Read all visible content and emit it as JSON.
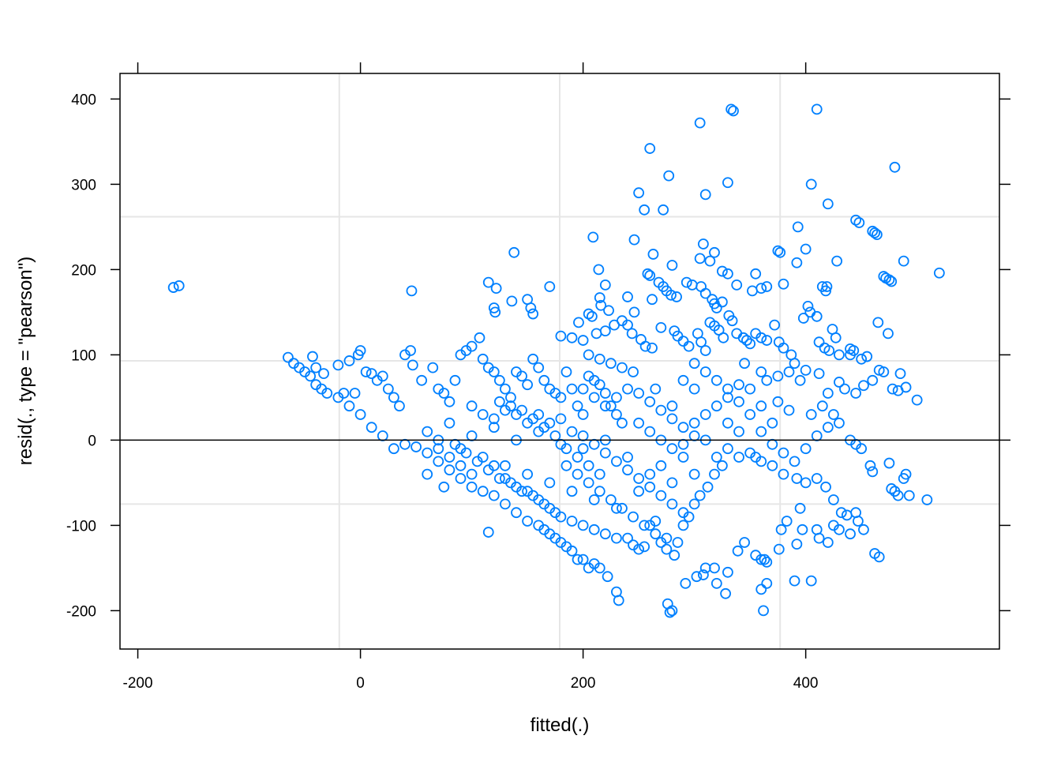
{
  "chart_data": {
    "type": "scatter",
    "x_label": "fitted(.)",
    "y_label": "resid(., type = \"pearson\")",
    "xlim": [
      -216,
      574
    ],
    "ylim": [
      -245,
      430
    ],
    "xticks": [
      -200,
      0,
      200,
      400
    ],
    "yticks": [
      -200,
      -100,
      0,
      100,
      200,
      300,
      400
    ],
    "mirror_ticks": true,
    "grid_x": [
      -19,
      179,
      377
    ],
    "grid_y": [
      -75,
      93,
      262
    ],
    "hline": 0,
    "color": "#0080ff",
    "x": [
      -168,
      -163,
      46,
      115,
      122,
      138,
      120,
      121,
      150,
      153,
      155,
      136,
      170,
      209,
      214,
      220,
      260,
      250,
      255,
      272,
      277,
      305,
      310,
      330,
      333,
      335,
      410,
      480,
      405,
      420,
      445,
      448,
      460,
      462,
      464,
      393,
      375,
      377,
      308,
      314,
      318,
      246,
      263,
      520,
      488,
      428,
      470,
      472,
      475,
      477,
      415,
      418,
      419,
      380,
      360,
      365,
      352,
      330,
      355,
      338,
      258,
      260,
      268,
      272,
      275,
      279,
      284,
      293,
      298,
      306,
      310,
      316,
      318,
      320,
      325,
      240,
      262,
      280,
      305,
      400,
      392,
      325,
      215,
      216,
      223,
      208,
      205,
      196,
      190,
      180,
      200,
      212,
      220,
      228,
      235,
      240,
      246,
      244,
      252,
      256,
      262,
      270,
      282,
      285,
      290,
      295,
      303,
      306,
      310,
      314,
      318,
      322,
      326,
      331,
      334,
      338,
      344,
      347,
      350,
      355,
      360,
      365,
      372,
      376,
      380,
      387,
      390,
      398,
      402,
      404,
      410,
      412,
      417,
      421,
      424,
      427,
      430,
      440,
      443,
      450,
      455,
      465,
      474,
      485,
      478,
      483,
      490,
      500,
      470,
      460,
      440,
      445,
      466,
      452,
      430,
      435,
      420,
      412,
      400,
      395,
      385,
      375,
      365,
      360,
      350,
      345,
      340,
      405,
      410,
      412,
      420,
      425,
      430,
      440,
      447,
      452,
      462,
      466,
      475,
      477,
      480,
      483,
      488,
      490,
      493,
      509,
      458,
      460,
      445,
      437,
      432,
      425,
      418,
      410,
      400,
      392,
      380,
      370,
      360,
      355,
      350,
      340,
      330,
      325,
      318,
      312,
      305,
      300,
      295,
      290,
      285,
      282,
      280,
      276,
      278,
      292,
      302,
      310,
      308,
      318,
      320,
      328,
      330,
      339,
      345,
      355,
      360,
      363,
      365,
      360,
      362,
      365,
      390,
      376,
      378,
      383,
      395,
      397,
      392,
      260,
      265,
      270,
      275,
      240,
      245,
      250,
      255,
      230,
      232,
      222,
      215,
      210,
      205,
      200,
      195,
      190,
      185,
      180,
      175,
      170,
      165,
      160,
      150,
      140,
      130,
      115,
      120,
      110,
      100,
      90,
      80,
      70,
      60,
      50,
      40,
      30,
      20,
      10,
      0,
      -10,
      -20,
      -30,
      -35,
      -40,
      -45,
      -50,
      -55,
      -60,
      -65,
      -43,
      -33,
      -40,
      -20,
      -10,
      -2,
      0,
      -5,
      -15,
      5,
      10,
      15,
      20,
      25,
      30,
      35,
      40,
      45,
      47,
      55,
      65,
      70,
      75,
      80,
      85,
      90,
      95,
      100,
      107,
      110,
      115,
      120,
      125,
      130,
      135,
      140,
      145,
      150,
      155,
      160,
      165,
      170,
      175,
      180,
      185,
      190,
      195,
      200,
      205,
      210,
      215,
      220,
      225,
      230,
      235,
      60,
      70,
      80,
      90,
      100,
      110,
      120,
      130,
      140,
      150,
      160,
      170,
      180,
      190,
      200,
      210,
      220,
      230,
      240,
      250,
      260,
      270,
      280,
      290,
      300,
      310,
      320,
      330,
      340,
      100,
      110,
      120,
      130,
      140,
      150,
      160,
      170,
      180,
      190,
      200,
      210,
      220,
      230,
      240,
      250,
      260,
      270,
      280,
      290,
      120,
      130,
      140,
      150,
      160,
      170,
      180,
      190,
      200,
      210,
      220,
      230,
      100,
      90,
      80,
      70,
      60,
      75,
      200,
      210,
      220,
      230,
      240,
      250,
      260,
      270,
      280,
      290,
      300,
      250,
      260,
      270,
      280,
      290,
      300,
      310,
      320,
      330,
      300,
      290,
      280,
      265,
      245,
      235,
      225,
      215,
      205,
      300,
      310,
      320,
      330,
      340,
      350,
      360,
      370,
      380,
      390,
      400,
      410,
      420,
      430,
      440,
      445,
      450,
      405,
      415,
      425,
      370,
      360,
      375,
      385,
      85,
      95,
      105,
      115,
      125,
      135,
      145,
      155,
      165,
      175,
      185,
      195,
      205,
      215,
      225,
      235,
      245,
      255,
      265,
      275,
      125,
      135,
      145,
      155,
      165,
      175,
      185,
      195,
      205,
      215
    ],
    "values": [
      179,
      181,
      175,
      185,
      178,
      220,
      155,
      150,
      165,
      155,
      148,
      163,
      180,
      238,
      200,
      182,
      342,
      290,
      270,
      270,
      310,
      372,
      288,
      302,
      388,
      386,
      388,
      320,
      300,
      277,
      258,
      255,
      245,
      243,
      241,
      250,
      222,
      220,
      230,
      210,
      220,
      235,
      218,
      196,
      210,
      210,
      192,
      190,
      188,
      186,
      180,
      175,
      180,
      183,
      178,
      180,
      175,
      195,
      195,
      182,
      195,
      193,
      185,
      180,
      175,
      170,
      168,
      185,
      182,
      180,
      172,
      165,
      160,
      155,
      162,
      168,
      165,
      205,
      213,
      224,
      208,
      198,
      167,
      158,
      152,
      145,
      148,
      138,
      120,
      122,
      117,
      125,
      128,
      135,
      140,
      135,
      150,
      125,
      118,
      110,
      108,
      132,
      128,
      122,
      116,
      110,
      125,
      115,
      105,
      138,
      134,
      129,
      120,
      146,
      140,
      125,
      120,
      117,
      113,
      125,
      120,
      117,
      135,
      115,
      108,
      100,
      90,
      143,
      157,
      150,
      145,
      115,
      108,
      105,
      130,
      120,
      100,
      107,
      105,
      95,
      98,
      138,
      125,
      78,
      60,
      58,
      62,
      47,
      80,
      70,
      100,
      55,
      82,
      64,
      68,
      60,
      55,
      78,
      82,
      70,
      80,
      75,
      70,
      80,
      60,
      90,
      65,
      -165,
      -105,
      -115,
      -120,
      -100,
      -105,
      -110,
      -95,
      -105,
      -133,
      -137,
      -27,
      -57,
      -60,
      -65,
      -45,
      -40,
      -65,
      -70,
      -30,
      -37,
      -85,
      -88,
      -85,
      -70,
      -55,
      -45,
      -50,
      -45,
      -40,
      -30,
      -25,
      -20,
      -15,
      -20,
      -10,
      -30,
      -40,
      -55,
      -65,
      -75,
      -90,
      -100,
      -120,
      -135,
      -200,
      -192,
      -202,
      -168,
      -160,
      -150,
      -158,
      -150,
      -168,
      -180,
      -155,
      -130,
      -120,
      -135,
      -140,
      -140,
      -143,
      -175,
      -200,
      -168,
      -165,
      -128,
      -105,
      -95,
      -80,
      -105,
      -122,
      -100,
      -95,
      -120,
      -128,
      -115,
      -123,
      -128,
      -125,
      -178,
      -188,
      -160,
      -150,
      -145,
      -150,
      -140,
      -140,
      -130,
      -125,
      -120,
      -115,
      -110,
      -105,
      -100,
      -95,
      -85,
      -75,
      -108,
      -65,
      -60,
      -55,
      -45,
      -35,
      -25,
      -15,
      -8,
      -5,
      -10,
      5,
      15,
      30,
      40,
      50,
      55,
      60,
      65,
      75,
      80,
      85,
      90,
      97,
      98,
      78,
      85,
      88,
      93,
      100,
      105,
      55,
      55,
      80,
      78,
      70,
      75,
      60,
      50,
      40,
      100,
      105,
      88,
      70,
      85,
      60,
      55,
      45,
      70,
      100,
      105,
      110,
      120,
      95,
      85,
      80,
      70,
      60,
      50,
      80,
      75,
      65,
      95,
      85,
      70,
      60,
      55,
      50,
      80,
      60,
      40,
      30,
      75,
      70,
      65,
      55,
      40,
      30,
      20,
      10,
      0,
      20,
      -10,
      5,
      -20,
      15,
      -30,
      0,
      -40,
      10,
      -50,
      -5,
      -60,
      -10,
      -70,
      0,
      -80,
      -20,
      -60,
      -40,
      -30,
      -50,
      -20,
      -40,
      0,
      -20,
      20,
      10,
      40,
      30,
      25,
      35,
      30,
      20,
      30,
      20,
      25,
      10,
      5,
      -5,
      -15,
      -25,
      -35,
      -45,
      -55,
      -65,
      -75,
      -85,
      -30,
      -45,
      -55,
      -60,
      -70,
      -80,
      -90,
      -95,
      -100,
      -105,
      -110,
      -115,
      -40,
      -30,
      -20,
      -10,
      -40,
      -55,
      60,
      50,
      40,
      50,
      60,
      55,
      45,
      35,
      25,
      15,
      5,
      20,
      10,
      0,
      -10,
      -5,
      20,
      30,
      40,
      50,
      60,
      70,
      40,
      60,
      80,
      85,
      90,
      95,
      100,
      90,
      80,
      70,
      60,
      45,
      30,
      10,
      -5,
      -15,
      -25,
      -10,
      5,
      15,
      20,
      0,
      -5,
      -10,
      30,
      40,
      30,
      20,
      40,
      45,
      35,
      -5,
      -15,
      -25,
      -35,
      -45,
      -50,
      -60,
      -65,
      -75,
      -85,
      -30,
      -40,
      -50,
      -60,
      -70,
      -80,
      -90,
      -100,
      -110,
      -115,
      45,
      40,
      35,
      25,
      15,
      5,
      -10,
      -20,
      -30,
      -40
    ]
  }
}
